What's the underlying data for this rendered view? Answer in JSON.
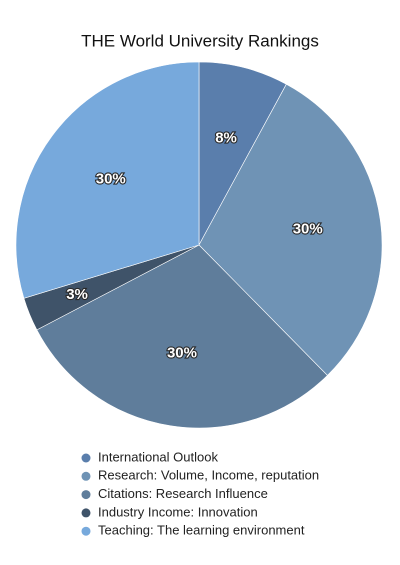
{
  "chart_data": {
    "type": "pie",
    "title": "THE World University Rankings",
    "categories": [
      "International Outlook",
      "Research: Volume, Income, reputation",
      "Citations: Research Influence",
      "Industry Income: Innovation",
      "Teaching: The learning environment"
    ],
    "values": [
      8,
      30,
      30,
      3,
      30
    ],
    "value_labels": [
      "8%",
      "30%",
      "30%",
      "3%",
      "30%"
    ],
    "colors": [
      "#5a7eac",
      "#6f93b5",
      "#5f7d9b",
      "#3f5369",
      "#77a9dc"
    ]
  }
}
